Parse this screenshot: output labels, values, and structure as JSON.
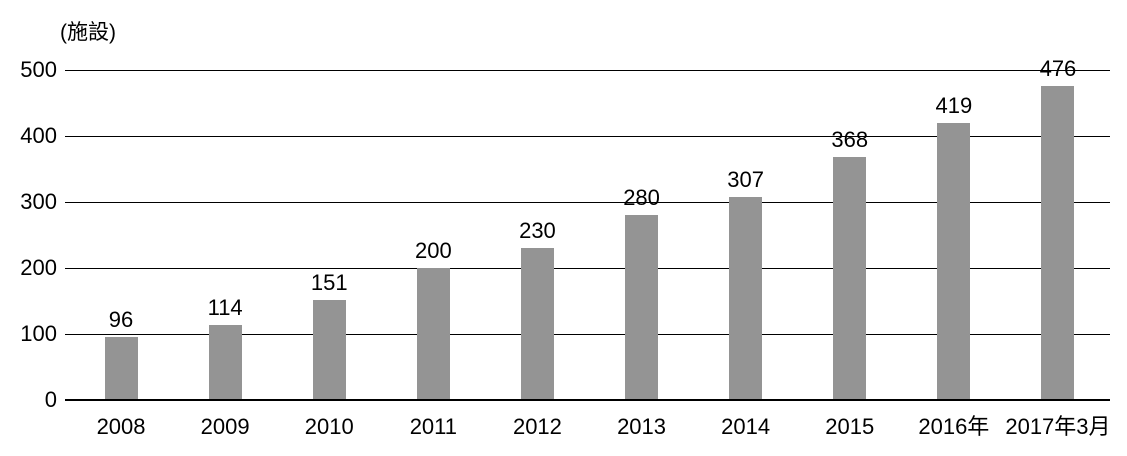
{
  "chart_data": {
    "type": "bar",
    "unit_label": "(施設)",
    "categories": [
      "2008",
      "2009",
      "2010",
      "2011",
      "2012",
      "2013",
      "2014",
      "2015",
      "2016年",
      "2017年3月"
    ],
    "values": [
      96,
      114,
      151,
      200,
      230,
      280,
      307,
      368,
      419,
      476
    ],
    "y_ticks": [
      0,
      100,
      200,
      300,
      400,
      500
    ],
    "ylim": [
      0,
      500
    ],
    "xlabel": "",
    "ylabel": "(施設)",
    "title": "",
    "legend": "none",
    "grid": true,
    "colors": {
      "bar": "#949494",
      "gridline": "#000000",
      "axis_line": "#000000",
      "text": "#000000",
      "background": "#ffffff"
    }
  }
}
